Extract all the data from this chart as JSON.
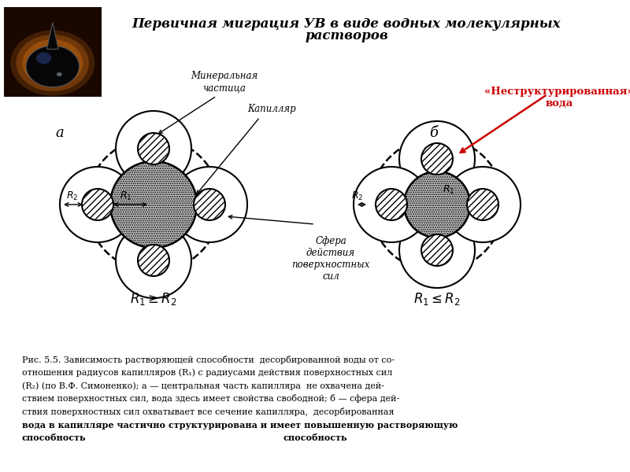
{
  "title_line1": "Первичная миграция УВ в виде водных молекулярных",
  "title_line2": "растворов",
  "title_fontsize": 12,
  "label_a": "а",
  "label_b": "б",
  "unstructured_line1": "«Неструктурированная»",
  "unstructured_line2": "вода",
  "mineral_label_line1": "Минеральная",
  "mineral_label_line2": "частица",
  "capillar_label": "Капилляр",
  "sphere_line1": "Сфера",
  "sphere_line2": "действия",
  "sphere_line3": "поверхностных",
  "sphere_line4": "сил",
  "r1_ge_r2": "R₁≥R₂",
  "r1_le_r2": "R₁≤R₂",
  "caption_lines": [
    "Рис. 5.5. Зависимость растворяющей способности  десорбированной воды от со-",
    "отношения радиусов капилляров (R₁) с радиусами действия поверхностных сил",
    "(R₂) (по В.Ф. Симоненко); а — центральная часть капилляра  не охвачена дей-",
    "ствием поверхностных сил, вода здесь имеет свойства свободной; б — сфера дей-",
    "ствия поверхностных сил охватывает все сечение капилляра,  десорбированная",
    "вода в капилляре частично структурирована и имеет повышенную растворяющую",
    "способность"
  ],
  "caption_bold_from": 5,
  "bg_color": "#ffffff",
  "text_color": "#000000",
  "red_color": "#cc0000",
  "drop_bg": "#1a0800",
  "drop_glow": "#b86010",
  "drop_body": "#060608",
  "drop_reflect": "#223366"
}
